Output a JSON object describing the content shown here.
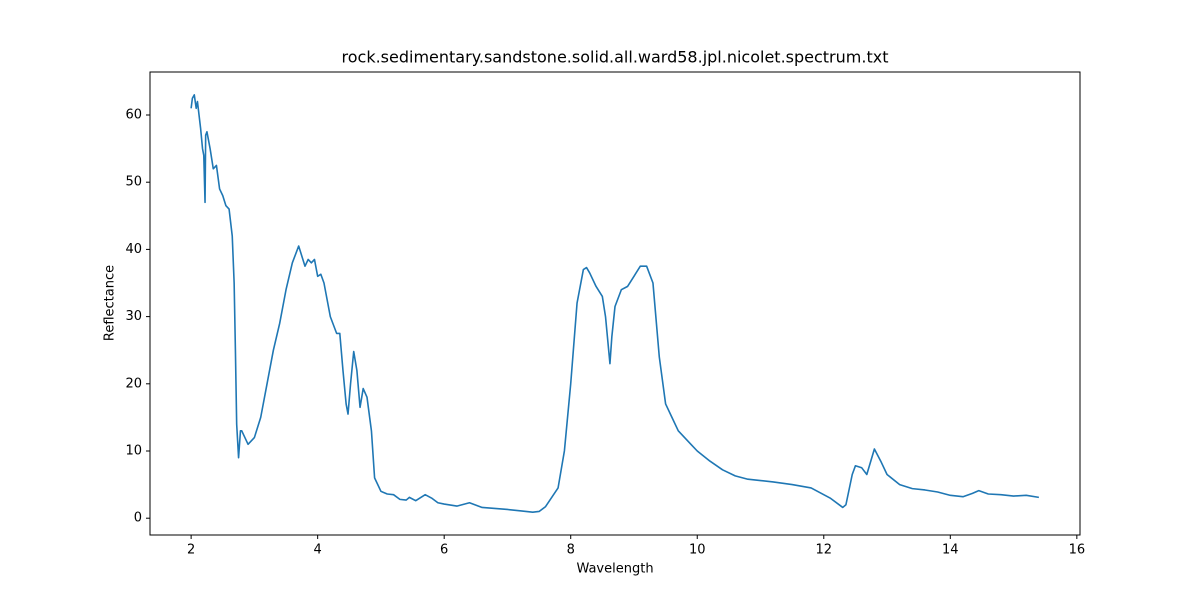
{
  "chart_data": {
    "type": "line",
    "title": "rock.sedimentary.sandstone.solid.all.ward58.jpl.nicolet.spectrum.txt",
    "x_label": "Wavelength",
    "y_label": "Reflectance",
    "xlim": [
      1.35,
      16.05
    ],
    "ylim": [
      -2.5,
      66.4
    ],
    "xticks": [
      2,
      4,
      6,
      8,
      10,
      12,
      14,
      16
    ],
    "yticks": [
      0,
      10,
      20,
      30,
      40,
      50,
      60
    ],
    "series": [
      {
        "color": "#1f77b4",
        "x": [
          2.0,
          2.02,
          2.05,
          2.08,
          2.1,
          2.15,
          2.18,
          2.2,
          2.22,
          2.23,
          2.25,
          2.3,
          2.35,
          2.4,
          2.45,
          2.5,
          2.55,
          2.6,
          2.65,
          2.68,
          2.7,
          2.72,
          2.75,
          2.78,
          2.8,
          2.85,
          2.9,
          3.0,
          3.1,
          3.2,
          3.3,
          3.4,
          3.5,
          3.6,
          3.7,
          3.75,
          3.8,
          3.85,
          3.9,
          3.95,
          4.0,
          4.05,
          4.1,
          4.2,
          4.3,
          4.35,
          4.4,
          4.45,
          4.48,
          4.52,
          4.57,
          4.62,
          4.67,
          4.72,
          4.78,
          4.85,
          4.9,
          5.0,
          5.1,
          5.2,
          5.3,
          5.4,
          5.45,
          5.55,
          5.7,
          5.8,
          5.9,
          6.0,
          6.2,
          6.4,
          6.6,
          7.0,
          7.2,
          7.4,
          7.5,
          7.6,
          7.8,
          7.9,
          8.0,
          8.1,
          8.2,
          8.25,
          8.3,
          8.4,
          8.5,
          8.55,
          8.62,
          8.65,
          8.7,
          8.8,
          8.9,
          9.0,
          9.1,
          9.2,
          9.3,
          9.4,
          9.5,
          9.6,
          9.7,
          9.8,
          9.9,
          10.0,
          10.2,
          10.4,
          10.6,
          10.8,
          11.0,
          11.2,
          11.5,
          11.8,
          12.0,
          12.1,
          12.3,
          12.35,
          12.45,
          12.5,
          12.6,
          12.68,
          12.8,
          12.9,
          13.0,
          13.2,
          13.4,
          13.6,
          13.8,
          14.0,
          14.2,
          14.35,
          14.45,
          14.6,
          14.8,
          15.0,
          15.2,
          15.4
        ],
        "values": [
          61,
          62.5,
          63,
          61,
          62,
          58,
          55,
          54,
          47,
          57,
          57.5,
          55,
          52,
          52.5,
          49,
          48,
          46.5,
          46,
          42,
          35,
          25,
          14,
          9,
          13,
          13,
          12,
          11,
          12,
          15,
          20,
          25,
          29,
          34,
          38,
          40.5,
          39,
          37.5,
          38.5,
          38,
          38.5,
          36,
          36.3,
          35,
          30,
          27.5,
          27.5,
          22,
          17,
          15.5,
          20,
          24.8,
          22,
          16.5,
          19.3,
          18,
          13,
          6,
          4,
          3.6,
          3.5,
          2.8,
          2.7,
          3.1,
          2.6,
          3.5,
          3,
          2.3,
          2.1,
          1.8,
          2.3,
          1.6,
          1.3,
          1.1,
          0.9,
          1,
          1.7,
          4.5,
          10,
          20,
          32,
          37,
          37.3,
          36.5,
          34.5,
          33,
          30,
          23,
          27,
          31.5,
          34,
          34.5,
          36,
          37.5,
          37.5,
          35,
          24,
          17,
          15,
          13,
          12,
          11,
          10,
          8.5,
          7.2,
          6.3,
          5.8,
          5.6,
          5.4,
          5,
          4.5,
          3.5,
          3,
          1.6,
          2,
          6.5,
          7.8,
          7.5,
          6.5,
          10.3,
          8.5,
          6.5,
          5,
          4.4,
          4.2,
          3.9,
          3.4,
          3.2,
          3.7,
          4.1,
          3.6,
          3.5,
          3.3,
          3.4,
          3.1
        ]
      }
    ]
  }
}
